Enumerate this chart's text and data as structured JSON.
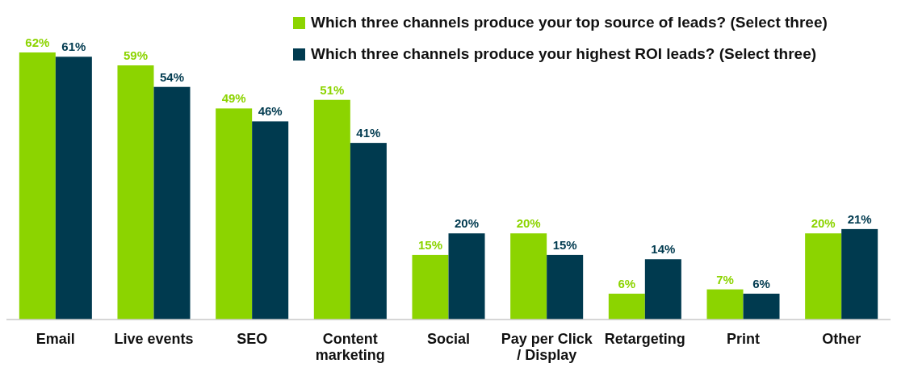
{
  "chart_data": {
    "type": "bar",
    "categories": [
      "Email",
      "Live events",
      "SEO",
      "Content marketing",
      "Social",
      "Pay per Click / Display",
      "Retargeting",
      "Print",
      "Other"
    ],
    "series": [
      {
        "name": "Which three channels produce your top source of leads? (Select three)",
        "color": "#8cd400",
        "values": [
          62,
          59,
          49,
          51,
          15,
          20,
          6,
          7,
          20
        ],
        "value_labels": [
          "62%",
          "59%",
          "49%",
          "51%",
          "15%",
          "20%",
          "6%",
          "7%",
          "20%"
        ]
      },
      {
        "name": "Which three channels produce your highest ROI leads? (Select three)",
        "color": "#003a4f",
        "values": [
          61,
          54,
          46,
          41,
          20,
          15,
          14,
          6,
          21
        ],
        "value_labels": [
          "61%",
          "54%",
          "46%",
          "41%",
          "20%",
          "15%",
          "14%",
          "6%",
          "21%"
        ]
      }
    ],
    "legend": "top right"
  }
}
